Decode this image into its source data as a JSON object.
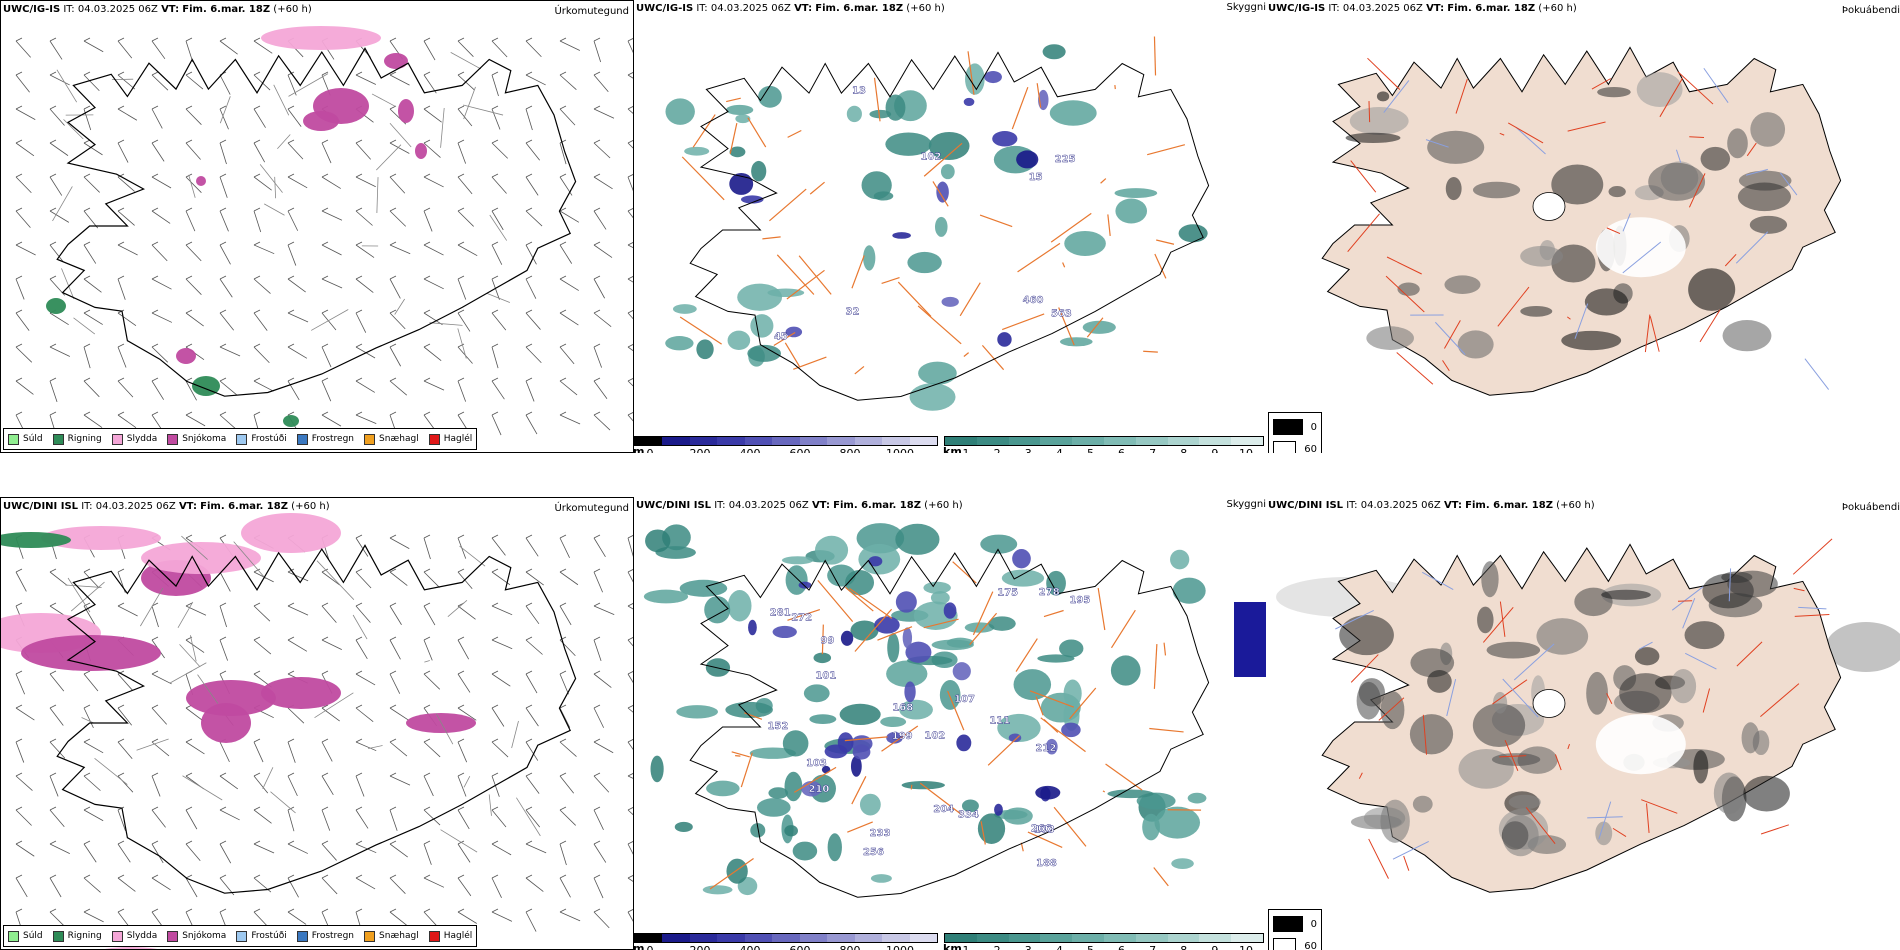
{
  "rows": [
    {
      "model": "UWC/IG-IS",
      "it_label": "IT:",
      "it_value": "04.03.2025 06Z",
      "vt_label": "VT:",
      "vt_value": "Fim. 6.mar. 18Z",
      "lead": "(+60 h)",
      "precip_title": "Úrkomutegund",
      "vis_title": "Skyggni",
      "fog_title": "Þokuábendi",
      "cloud_labels": [
        "460",
        "225",
        "563",
        "102",
        "45",
        "13",
        "15",
        "32"
      ]
    },
    {
      "model": "UWC/DINI ISL",
      "it_label": "IT:",
      "it_value": "04.03.2025 06Z",
      "vt_label": "VT:",
      "vt_value": "Fim. 6.mar. 18Z",
      "lead": "(+60 h)",
      "precip_title": "Úrkomutegund",
      "vis_title": "Skyggni",
      "fog_title": "Þokuábendi",
      "cloud_labels": [
        "212",
        "111",
        "103",
        "281",
        "266",
        "278",
        "168",
        "195",
        "256",
        "233",
        "199",
        "204",
        "210",
        "102",
        "188",
        "101",
        "107",
        "334",
        "175",
        "152",
        "103",
        "99",
        "272"
      ]
    }
  ],
  "precip_legend": [
    {
      "label": "Súld",
      "color": "#90ee90"
    },
    {
      "label": "Rigning",
      "color": "#2e8b57"
    },
    {
      "label": "Slydda",
      "color": "#f4a6d7"
    },
    {
      "label": "Snjókoma",
      "color": "#c04aa0"
    },
    {
      "label": "Frostúði",
      "color": "#9ec9f0"
    },
    {
      "label": "Frostregn",
      "color": "#3a78c0"
    },
    {
      "label": "Snæhagl",
      "color": "#f0a020"
    },
    {
      "label": "Haglél",
      "color": "#e01818"
    }
  ],
  "cloud_bar": {
    "unit": "m",
    "ticks": [
      "0",
      "200",
      "400",
      "600",
      "800",
      "1000"
    ],
    "colors": [
      "#000000",
      "#1a1a8a",
      "#2a2a9a",
      "#3a3aa8",
      "#5050b4",
      "#6868be",
      "#8080c8",
      "#9898d2",
      "#b0b0dc",
      "#c8c8e6",
      "#dcdcf0"
    ]
  },
  "vis_bar": {
    "unit": "km",
    "ticks": [
      "1",
      "2",
      "3",
      "4",
      "5",
      "6",
      "7",
      "8",
      "9",
      "10"
    ],
    "colors": [
      "#2f7f77",
      "#3c8b83",
      "#4a978f",
      "#5aa39b",
      "#6cafa8",
      "#80bcb5",
      "#96c8c2",
      "#acd4cf",
      "#c4e1dd",
      "#dcedeb"
    ]
  },
  "fog_legend": [
    {
      "label": "0",
      "color": "#000000"
    },
    {
      "label": "60",
      "color": "#ffffff"
    }
  ],
  "colors": {
    "road": "#e87830",
    "road_red": "#e04020",
    "river": "#8aa0e0",
    "land_fog": "#f0ddd0",
    "coast": "#000000",
    "wind_barb": "#555555"
  }
}
